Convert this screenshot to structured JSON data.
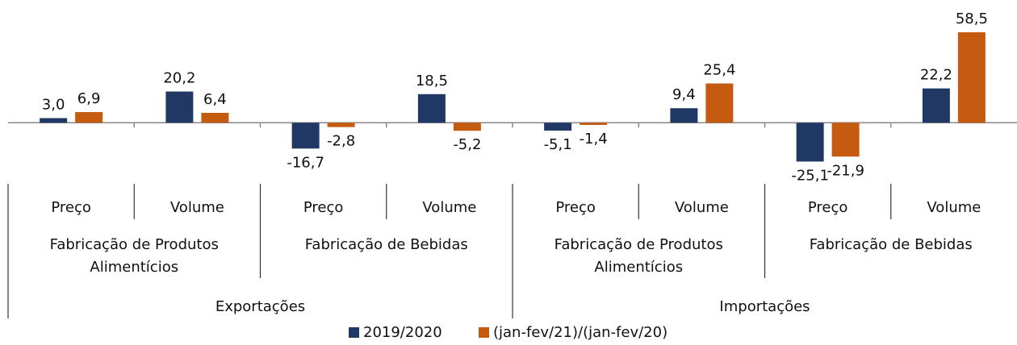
{
  "chart_data": {
    "type": "bar",
    "categories": [
      "Preço",
      "Volume",
      "Preço",
      "Volume",
      "Preço",
      "Volume",
      "Preço",
      "Volume"
    ],
    "subgroups": [
      "Fabricação de Produtos Alimentícios",
      "Fabricação de Bebidas",
      "Fabricação de Produtos Alimentícios",
      "Fabricação de Bebidas"
    ],
    "groups": [
      "Exportações",
      "Importações"
    ],
    "series": [
      {
        "name": "2019/2020",
        "color": "#203864",
        "values": [
          3.0,
          20.2,
          -16.7,
          18.5,
          -5.1,
          9.4,
          -25.1,
          22.2
        ],
        "value_labels": [
          "3,0",
          "20,2",
          "-16,7",
          "18,5",
          "-5,1",
          "9,4",
          "-25,1",
          "22,2"
        ]
      },
      {
        "name": "(jan-fev/21)/(jan-fev/20)",
        "color": "#c55a11",
        "values": [
          6.9,
          6.4,
          -2.8,
          -5.2,
          -1.4,
          25.4,
          -21.9,
          58.5
        ],
        "value_labels": [
          "6,9",
          "6,4",
          "-2,8",
          "-5,2",
          "-1,4",
          "25,4",
          "-21,9",
          "58,5"
        ]
      }
    ],
    "ylim": [
      -40,
      70
    ]
  }
}
